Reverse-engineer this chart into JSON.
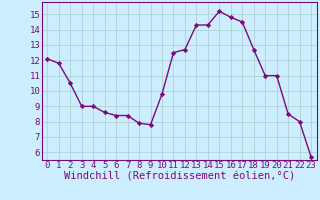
{
  "x": [
    0,
    1,
    2,
    3,
    4,
    5,
    6,
    7,
    8,
    9,
    10,
    11,
    12,
    13,
    14,
    15,
    16,
    17,
    18,
    19,
    20,
    21,
    22,
    23
  ],
  "y": [
    12.1,
    11.8,
    10.5,
    9.0,
    9.0,
    8.6,
    8.4,
    8.4,
    7.9,
    7.8,
    9.8,
    12.5,
    12.7,
    14.3,
    14.3,
    15.2,
    14.8,
    14.5,
    12.7,
    11.0,
    11.0,
    8.5,
    8.0,
    5.7
  ],
  "line_color": "#7b0a7b",
  "marker": "D",
  "marker_size": 2.2,
  "bg_color": "#cceeff",
  "grid_color": "#aacccc",
  "xlabel": "Windchill (Refroidissement éolien,°C)",
  "ylim": [
    5.5,
    15.8
  ],
  "xlim": [
    -0.5,
    23.5
  ],
  "yticks": [
    6,
    7,
    8,
    9,
    10,
    11,
    12,
    13,
    14,
    15
  ],
  "xticks": [
    0,
    1,
    2,
    3,
    4,
    5,
    6,
    7,
    8,
    9,
    10,
    11,
    12,
    13,
    14,
    15,
    16,
    17,
    18,
    19,
    20,
    21,
    22,
    23
  ],
  "tick_label_fontsize": 6.5,
  "xlabel_fontsize": 7.5,
  "line_width": 1.0,
  "tick_color": "#7b0a7b",
  "label_color": "#7b0a7b",
  "spine_color": "#7b0a7b"
}
